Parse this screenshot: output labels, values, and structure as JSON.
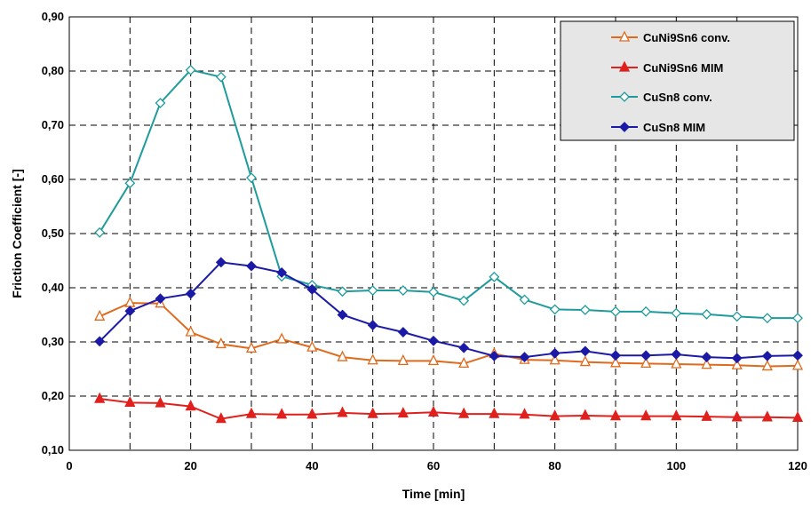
{
  "chart_data": {
    "type": "line",
    "title": "",
    "xlabel": "Time [min]",
    "ylabel": "Friction Coefficient [-]",
    "xlim": [
      0,
      120
    ],
    "ylim": [
      0.1,
      0.9
    ],
    "x_ticks": [
      "0",
      "20",
      "40",
      "60",
      "80",
      "100",
      "120"
    ],
    "y_ticks": [
      "0,10",
      "0,20",
      "0,30",
      "0,40",
      "0,50",
      "0,60",
      "0,70",
      "0,80",
      "0,90"
    ],
    "grid": true,
    "legend_position": "top-right",
    "x": [
      5,
      10,
      15,
      20,
      25,
      30,
      35,
      40,
      45,
      50,
      55,
      60,
      65,
      70,
      75,
      80,
      85,
      90,
      95,
      100,
      105,
      110,
      115,
      120
    ],
    "series": [
      {
        "name": "CuNi9Sn6 conv.",
        "color": "#e06a1c",
        "marker": "triangle-open",
        "values": [
          0.347,
          0.372,
          0.371,
          0.318,
          0.296,
          0.288,
          0.305,
          0.29,
          0.272,
          0.266,
          0.265,
          0.265,
          0.26,
          0.278,
          0.267,
          0.266,
          0.263,
          0.261,
          0.26,
          0.259,
          0.258,
          0.257,
          0.255,
          0.256
        ]
      },
      {
        "name": "CuNi9Sn6 MIM",
        "color": "#e0201c",
        "marker": "triangle-filled",
        "values": [
          0.195,
          0.188,
          0.187,
          0.181,
          0.158,
          0.167,
          0.166,
          0.166,
          0.169,
          0.167,
          0.168,
          0.17,
          0.167,
          0.167,
          0.166,
          0.163,
          0.164,
          0.163,
          0.163,
          0.163,
          0.162,
          0.161,
          0.161,
          0.16
        ]
      },
      {
        "name": "CuSn8 conv.",
        "color": "#1f9b9b",
        "marker": "diamond-open",
        "values": [
          0.502,
          0.593,
          0.741,
          0.802,
          0.789,
          0.603,
          0.421,
          0.405,
          0.393,
          0.395,
          0.395,
          0.392,
          0.376,
          0.42,
          0.378,
          0.36,
          0.359,
          0.356,
          0.356,
          0.353,
          0.351,
          0.347,
          0.344,
          0.344
        ]
      },
      {
        "name": "CuSn8 MIM",
        "color": "#1a1aa6",
        "marker": "diamond-filled",
        "values": [
          0.301,
          0.357,
          0.38,
          0.389,
          0.447,
          0.44,
          0.428,
          0.397,
          0.35,
          0.331,
          0.318,
          0.302,
          0.289,
          0.274,
          0.272,
          0.279,
          0.283,
          0.275,
          0.275,
          0.277,
          0.272,
          0.27,
          0.274,
          0.275
        ]
      }
    ]
  }
}
